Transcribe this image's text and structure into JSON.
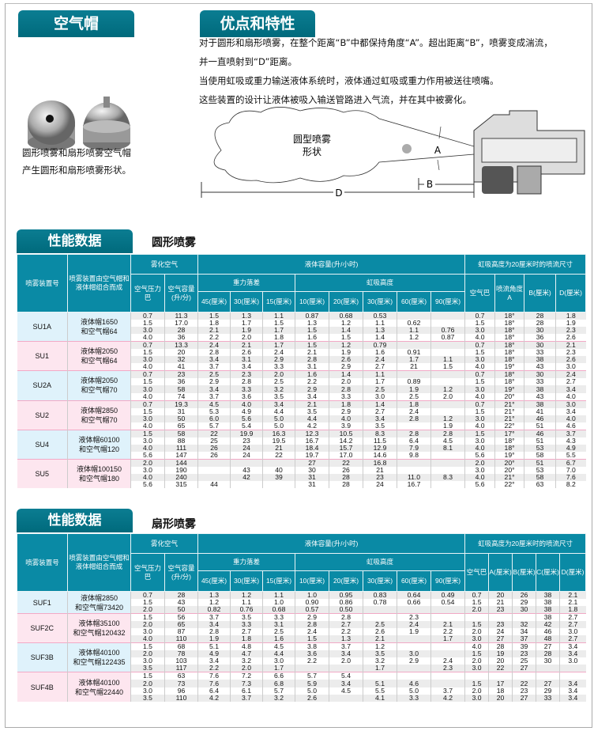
{
  "left": {
    "title": "空气帽",
    "caption": [
      "圆形喷雾和扇形喷雾空气帽",
      "产生圆形和扇形喷雾形状。"
    ]
  },
  "features": {
    "title": "优点和特性",
    "paragraphs": [
      "对于圆形和扇形喷雾，在整个距离“B”中都保持角度“A”。超出距离“B”，喷雾变成湍流，",
      "并一直喷射到“D”距离。",
      "当使用虹吸或重力输送液体系统时，液体通过虹吸或重力作用被送往喷嘴。",
      "这些装置的设计让液体被吸入输送管路进入气流，并在其中被雾化。"
    ],
    "diagram": {
      "spray_label": [
        "圆型喷雾",
        "形状"
      ],
      "A": "A",
      "B": "B",
      "D": "D"
    }
  },
  "colors": {
    "header": "#0a8aa5",
    "tab": "#006a7c",
    "group_blue": "#dff2fb",
    "group_pink": "#fde6ef"
  },
  "table1": {
    "tab": "性能数据",
    "subtitle": "圆形喷雾",
    "headers": {
      "set": "喷雾装置号",
      "combo": "喷雾装置由空气帽和液体帽组合而成",
      "atom": "雾化空气",
      "liquid": "液体容量(升/小时)",
      "gravity": "重力落差",
      "siphon": "虹吸高度",
      "right": "虹吸高度为20厘米时的喷流尺寸",
      "air_p": "空气压力巴",
      "air_q": "空气容量(升/分)",
      "cols": [
        "45(厘米)",
        "30(厘米)",
        "15(厘米)",
        "10(厘米)",
        "20(厘米)",
        "30(厘米)",
        "60(厘米)",
        "90(厘米)"
      ],
      "right_cols": [
        "空气巴",
        "喷流角度A",
        "B(厘米)",
        "D(厘米)"
      ]
    },
    "groups": [
      {
        "id": "SU1A",
        "combo": [
          "液体帽1650",
          "和空气帽64"
        ],
        "rows": [
          [
            "0.7",
            "11.3",
            "1.5",
            "1.3",
            "1.1",
            "0.87",
            "0.68",
            "0.53",
            "",
            "",
            "0.7",
            "18°",
            "28",
            "1.8"
          ],
          [
            "1.5",
            "17.0",
            "1.8",
            "1.7",
            "1.5",
            "1.3",
            "1.2",
            "1.1",
            "0.62",
            "",
            "1.5",
            "18°",
            "28",
            "1.9"
          ],
          [
            "3.0",
            "28",
            "2.1",
            "1.9",
            "1.7",
            "1.5",
            "1.4",
            "1.3",
            "1.1",
            "0.76",
            "3.0",
            "18°",
            "30",
            "2.3"
          ],
          [
            "4.0",
            "36",
            "2.2",
            "2.0",
            "1.8",
            "1.6",
            "1.5",
            "1.4",
            "1.2",
            "0.87",
            "4.0",
            "18°",
            "36",
            "2.6"
          ]
        ]
      },
      {
        "id": "SU1",
        "combo": [
          "液体帽2050",
          "和空气帽64"
        ],
        "rows": [
          [
            "0.7",
            "13.3",
            "2.4",
            "2.1",
            "1.7",
            "1.5",
            "1.2",
            "0.79",
            "",
            "",
            "0.7",
            "18°",
            "30",
            "2.1"
          ],
          [
            "1.5",
            "20",
            "2.8",
            "2.6",
            "2.4",
            "2.1",
            "1.9",
            "1.6",
            "0.91",
            "",
            "1.5",
            "18°",
            "33",
            "2.3"
          ],
          [
            "3.0",
            "32",
            "3.4",
            "3.1",
            "2.9",
            "2.8",
            "2.6",
            "2.4",
            "1.7",
            "1.1",
            "3.0",
            "18°",
            "38",
            "2.6"
          ],
          [
            "4.0",
            "41",
            "3.7",
            "3.4",
            "3.3",
            "3.1",
            "2.9",
            "2.7",
            "21",
            "1.5",
            "4.0",
            "19°",
            "43",
            "3.0"
          ]
        ]
      },
      {
        "id": "SU2A",
        "combo": [
          "液体帽2050",
          "和空气帽70"
        ],
        "rows": [
          [
            "0.7",
            "23",
            "2.5",
            "2.3",
            "2.0",
            "1.6",
            "1.4",
            "1.1",
            "",
            "",
            "0.7",
            "18°",
            "30",
            "2.4"
          ],
          [
            "1.5",
            "36",
            "2.9",
            "2.8",
            "2.5",
            "2.2",
            "2.0",
            "1.7",
            "0.89",
            "",
            "1.5",
            "18°",
            "33",
            "2.7"
          ],
          [
            "3.0",
            "58",
            "3.4",
            "3.3",
            "3.2",
            "2.9",
            "2.8",
            "2.5",
            "1.9",
            "1.2",
            "3.0",
            "19°",
            "38",
            "3.4"
          ],
          [
            "4.0",
            "74",
            "3.7",
            "3.6",
            "3.5",
            "3.4",
            "3.3",
            "3.0",
            "2.5",
            "2.0",
            "4.0",
            "20°",
            "43",
            "4.0"
          ]
        ]
      },
      {
        "id": "SU2",
        "combo": [
          "液体帽2850",
          "和空气帽70"
        ],
        "rows": [
          [
            "0.7",
            "19.3",
            "4.5",
            "4.0",
            "3.4",
            "2.1",
            "1.8",
            "1.4",
            "1.8",
            "",
            "0.7",
            "21°",
            "38",
            "3.0"
          ],
          [
            "1.5",
            "31",
            "5.3",
            "4.9",
            "4.4",
            "3.5",
            "2.9",
            "2.7",
            "2.4",
            "",
            "1.5",
            "21°",
            "41",
            "3.4"
          ],
          [
            "3.0",
            "50",
            "6.0",
            "5.6",
            "5.0",
            "4.4",
            "4.0",
            "3.4",
            "2.8",
            "1.2",
            "3.0",
            "21°",
            "46",
            "4.0"
          ],
          [
            "4.0",
            "65",
            "5.7",
            "5.4",
            "5.0",
            "4.2",
            "3.9",
            "3.5",
            "",
            "1.9",
            "4.0",
            "22°",
            "51",
            "4.6"
          ]
        ]
      },
      {
        "id": "SU4",
        "combo": [
          "液体帽60100",
          "和空气帽120"
        ],
        "rows": [
          [
            "1.5",
            "58",
            "22",
            "19.9",
            "16.3",
            "12.3",
            "10.5",
            "8.3",
            "2.8",
            "2.8",
            "1.5",
            "17°",
            "46",
            "3.7"
          ],
          [
            "3.0",
            "88",
            "25",
            "23",
            "19.5",
            "16.7",
            "14.2",
            "11.5",
            "6.4",
            "4.5",
            "3.0",
            "18°",
            "51",
            "4.3"
          ],
          [
            "4.0",
            "111",
            "26",
            "24",
            "21",
            "18.4",
            "15.7",
            "12.9",
            "7.9",
            "8.1",
            "4.0",
            "18°",
            "53",
            "4.9"
          ],
          [
            "5.6",
            "147",
            "26",
            "24",
            "22",
            "19.7",
            "17.0",
            "14.6",
            "9.8",
            "",
            "5.6",
            "19°",
            "58",
            "5.5"
          ]
        ]
      },
      {
        "id": "SU5",
        "combo": [
          "液体帽100150",
          "和空气帽180"
        ],
        "rows": [
          [
            "2.0",
            "144",
            "",
            "",
            "",
            "27",
            "22",
            "16.8",
            "",
            "",
            "2.0",
            "20°",
            "51",
            "6.7"
          ],
          [
            "3.0",
            "190",
            "",
            "43",
            "40",
            "30",
            "26",
            "21",
            "",
            "",
            "3.0",
            "20°",
            "53",
            "7.0"
          ],
          [
            "4.0",
            "240",
            "",
            "42",
            "39",
            "31",
            "28",
            "23",
            "11.0",
            "8.3",
            "4.0",
            "21°",
            "58",
            "7.6"
          ],
          [
            "5.6",
            "315",
            "44",
            "",
            "",
            "31",
            "28",
            "24",
            "16.7",
            "",
            "5.6",
            "22°",
            "63",
            "8.2"
          ]
        ]
      }
    ]
  },
  "table2": {
    "tab": "性能数据",
    "subtitle": "扇形喷雾",
    "headers": {
      "set": "喷雾装置号",
      "combo": "喷雾装置由空气帽和液体帽组合而成",
      "atom": "雾化空气",
      "liquid": "液体容量(升/小时)",
      "gravity": "重力落差",
      "siphon": "虹吸高度",
      "right": "虹吸高度为20厘米时的喷流尺寸",
      "air_p": "空气压力巴",
      "air_q": "空气容量(升/分)",
      "cols": [
        "45(厘米)",
        "30(厘米)",
        "15(厘米)",
        "10(厘米)",
        "20(厘米)",
        "30(厘米)",
        "60(厘米)",
        "90(厘米)"
      ],
      "right_cols": [
        "空气巴",
        "A(厘米)",
        "B(厘米)",
        "C(厘米)",
        "D(厘米)"
      ]
    },
    "groups": [
      {
        "id": "SUF1",
        "combo": [
          "液体帽2850",
          "和空气帽73420"
        ],
        "rows": [
          [
            "0.7",
            "28",
            "1.3",
            "1.2",
            "1.1",
            "1.0",
            "0.95",
            "0.83",
            "0.64",
            "0.49"
          ],
          [
            "1.5",
            "43",
            "1.2",
            "1.1",
            "1.0",
            "0.90",
            "0.86",
            "0.78",
            "0.66",
            "0.54"
          ],
          [
            "2.0",
            "50",
            "0.82",
            "0.76",
            "0.68",
            "0.57",
            "0.50",
            "",
            "",
            ""
          ]
        ]
      },
      {
        "id": "SUF2C",
        "combo": [
          "液体帽35100",
          "和空气帽120432"
        ],
        "rows": [
          [
            "1.5",
            "56",
            "3.7",
            "3.5",
            "3.3",
            "2.9",
            "2.8",
            "",
            "2.3",
            ""
          ],
          [
            "2.0",
            "65",
            "3.4",
            "3.3",
            "3.1",
            "2.8",
            "2.7",
            "2.5",
            "2.4",
            "2.1"
          ],
          [
            "3.0",
            "87",
            "2.8",
            "2.7",
            "2.5",
            "2.4",
            "2.2",
            "2.6",
            "1.9",
            "2.2"
          ],
          [
            "4.0",
            "110",
            "1.9",
            "1.8",
            "1.6",
            "1.5",
            "1.3",
            "2.1",
            "",
            "1.7"
          ]
        ]
      },
      {
        "id": "SUF3B",
        "combo": [
          "液体帽40100",
          "和空气帽122435"
        ],
        "rows": [
          [
            "1.5",
            "68",
            "5.1",
            "4.8",
            "4.5",
            "3.8",
            "3.7",
            "1.2",
            "",
            ""
          ],
          [
            "2.0",
            "78",
            "4.9",
            "4.7",
            "4.4",
            "3.6",
            "3.4",
            "3.5",
            "3.0",
            ""
          ],
          [
            "3.0",
            "103",
            "3.4",
            "3.2",
            "3.0",
            "2.2",
            "2.0",
            "3.2",
            "2.9",
            "2.4"
          ],
          [
            "3.5",
            "117",
            "2.2",
            "2.0",
            "1.7",
            "",
            "",
            "1.7",
            "",
            "2.3"
          ]
        ]
      },
      {
        "id": "SUF4B",
        "combo": [
          "液体帽40100",
          "和空气帽22440"
        ],
        "rows": [
          [
            "1.5",
            "63",
            "7.6",
            "7.2",
            "6.6",
            "5.7",
            "5.4",
            "",
            "",
            ""
          ],
          [
            "2.0",
            "73",
            "7.6",
            "7.3",
            "6.8",
            "5.9",
            "3.4",
            "5.1",
            "4.6",
            ""
          ],
          [
            "3.0",
            "96",
            "6.4",
            "6.1",
            "5.7",
            "5.0",
            "4.5",
            "5.5",
            "5.0",
            "3.7"
          ],
          [
            "3.5",
            "110",
            "4.2",
            "3.7",
            "3.2",
            "2.6",
            "",
            "4.1",
            "3.3",
            "4.2"
          ]
        ]
      }
    ],
    "right_rows": [
      [
        "0.7",
        "20",
        "26",
        "38",
        "2.1"
      ],
      [
        "1.5",
        "21",
        "29",
        "38",
        "2.1"
      ],
      [
        "2.0",
        "23",
        "30",
        "38",
        "1.8"
      ],
      [
        "",
        "",
        "",
        "38",
        "2.7"
      ],
      [
        "1.5",
        "23",
        "32",
        "42",
        "2.7"
      ],
      [
        "2.0",
        "24",
        "34",
        "46",
        "3.0"
      ],
      [
        "3.0",
        "27",
        "37",
        "48",
        "2.7"
      ],
      [
        "4.0",
        "28",
        "39",
        "27",
        "3.4"
      ],
      [
        "1.5",
        "19",
        "23",
        "28",
        "3.4"
      ],
      [
        "2.0",
        "20",
        "25",
        "30",
        "3.0"
      ],
      [
        "3.0",
        "22",
        "27",
        "",
        ""
      ],
      [
        "",
        "",
        "",
        "",
        ""
      ],
      [
        "1.5",
        "17",
        "22",
        "27",
        "3.4"
      ],
      [
        "2.0",
        "18",
        "23",
        "29",
        "3.4"
      ],
      [
        "3.0",
        "20",
        "27",
        "33",
        "3.4"
      ]
    ]
  }
}
